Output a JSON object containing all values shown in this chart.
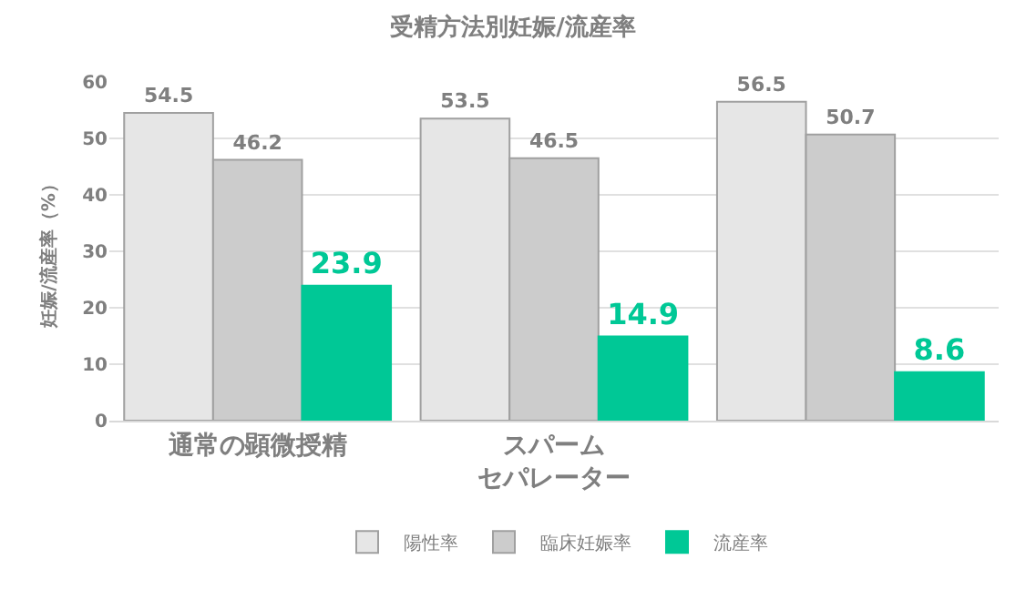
{
  "chart_data": {
    "type": "bar",
    "title": "受精方法別妊娠/流産率",
    "ylabel": "妊娠/流産率（%）",
    "categories": [
      "通常の顕微授精",
      "スパームセパレーター",
      null
    ],
    "series": [
      {
        "name": "陽性率",
        "color": "#e6e6e6",
        "values": [
          54.5,
          53.5,
          56.5
        ]
      },
      {
        "name": "臨床妊娠率",
        "color": "#cccccc",
        "values": [
          46.2,
          46.5,
          50.7
        ]
      },
      {
        "name": "流産率",
        "color": "#00c896",
        "values": [
          23.9,
          14.9,
          8.6
        ]
      }
    ],
    "ylim": [
      0,
      60
    ],
    "yticks": [
      0,
      10,
      20,
      30,
      40,
      50,
      60
    ],
    "grid": "y",
    "legend": "bottom",
    "data_labels": true
  }
}
